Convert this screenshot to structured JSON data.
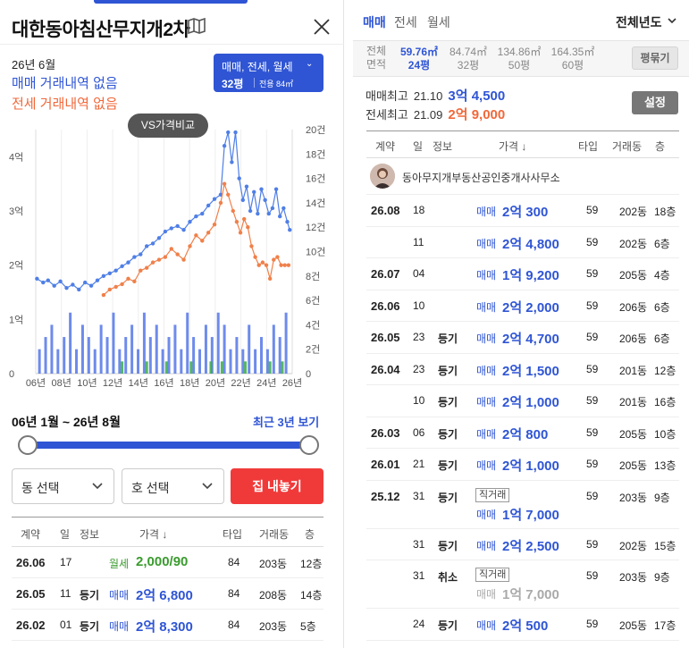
{
  "header": {
    "title": "대한동아침산무지개2차"
  },
  "summary": {
    "month": "26년 6월",
    "sale_none": "매매 거래내역 없음",
    "lease_none": "전세 거래내역 없음",
    "type_selector": {
      "types": "매매, 전세, 월세",
      "pyeong": "32평",
      "area": "전용 84㎡"
    },
    "vs_button": "VS가격비교"
  },
  "chart_data": {
    "type": "line",
    "title": "",
    "x_ticks": [
      "06년",
      "08년",
      "10년",
      "12년",
      "14년",
      "16년",
      "18년",
      "20년",
      "22년",
      "24년",
      "26년"
    ],
    "y_left_ticks": [
      "0",
      "1억",
      "2억",
      "3억",
      "4억"
    ],
    "y_right_ticks": [
      "0",
      "2건",
      "4건",
      "6건",
      "8건",
      "10건",
      "12건",
      "14건",
      "16건",
      "18건",
      "20건"
    ],
    "ylim_left": [
      0,
      4.5
    ],
    "ylim_right": [
      0,
      20
    ],
    "xlim": [
      2006,
      2026.8
    ],
    "grid": "vertical",
    "series": [
      {
        "color": "#4f7fe6",
        "points": [
          [
            2006.1,
            1.75
          ],
          [
            2006.6,
            1.68
          ],
          [
            2007.0,
            1.72
          ],
          [
            2007.5,
            1.62
          ],
          [
            2008.0,
            1.7
          ],
          [
            2008.5,
            1.58
          ],
          [
            2009.0,
            1.64
          ],
          [
            2009.5,
            1.55
          ],
          [
            2010.0,
            1.68
          ],
          [
            2010.5,
            1.62
          ],
          [
            2011.0,
            1.72
          ],
          [
            2011.5,
            1.8
          ],
          [
            2012.0,
            1.85
          ],
          [
            2012.5,
            1.9
          ],
          [
            2013.0,
            1.98
          ],
          [
            2013.5,
            2.05
          ],
          [
            2014.0,
            2.15
          ],
          [
            2014.5,
            2.2
          ],
          [
            2015.0,
            2.35
          ],
          [
            2015.5,
            2.4
          ],
          [
            2016.0,
            2.5
          ],
          [
            2016.5,
            2.62
          ],
          [
            2017.0,
            2.68
          ],
          [
            2017.5,
            2.72
          ],
          [
            2018.0,
            2.65
          ],
          [
            2018.5,
            2.8
          ],
          [
            2019.0,
            2.9
          ],
          [
            2019.5,
            2.95
          ],
          [
            2020.0,
            3.1
          ],
          [
            2020.5,
            3.22
          ],
          [
            2021.0,
            3.3
          ],
          [
            2021.3,
            4.2
          ],
          [
            2021.6,
            4.45
          ],
          [
            2021.9,
            3.9
          ],
          [
            2022.2,
            4.45
          ],
          [
            2022.5,
            3.6
          ],
          [
            2022.8,
            3.2
          ],
          [
            2023.1,
            3.45
          ],
          [
            2023.4,
            3.0
          ],
          [
            2023.7,
            3.35
          ],
          [
            2024.0,
            2.95
          ],
          [
            2024.3,
            3.4
          ],
          [
            2024.6,
            3.2
          ],
          [
            2024.9,
            2.95
          ],
          [
            2025.2,
            3.05
          ],
          [
            2025.5,
            3.4
          ],
          [
            2025.8,
            2.9
          ],
          [
            2026.1,
            3.05
          ],
          [
            2026.4,
            2.8
          ],
          [
            2026.6,
            2.65
          ]
        ]
      },
      {
        "color": "#f0804a",
        "points": [
          [
            2011.5,
            1.45
          ],
          [
            2012.0,
            1.55
          ],
          [
            2012.5,
            1.6
          ],
          [
            2013.0,
            1.65
          ],
          [
            2013.5,
            1.75
          ],
          [
            2014.0,
            1.7
          ],
          [
            2014.5,
            1.9
          ],
          [
            2015.0,
            1.95
          ],
          [
            2015.5,
            2.05
          ],
          [
            2016.0,
            2.1
          ],
          [
            2016.5,
            2.15
          ],
          [
            2017.0,
            2.3
          ],
          [
            2017.5,
            2.2
          ],
          [
            2018.0,
            2.1
          ],
          [
            2018.5,
            2.35
          ],
          [
            2019.0,
            2.55
          ],
          [
            2019.5,
            2.45
          ],
          [
            2020.0,
            2.6
          ],
          [
            2020.5,
            2.75
          ],
          [
            2021.0,
            3.15
          ],
          [
            2021.3,
            3.5
          ],
          [
            2021.6,
            3.3
          ],
          [
            2022.0,
            3.0
          ],
          [
            2022.3,
            2.8
          ],
          [
            2022.6,
            2.6
          ],
          [
            2022.9,
            2.85
          ],
          [
            2023.2,
            2.7
          ],
          [
            2023.5,
            2.35
          ],
          [
            2023.8,
            2.15
          ],
          [
            2024.1,
            2.0
          ],
          [
            2024.4,
            2.05
          ],
          [
            2024.7,
            2.0
          ],
          [
            2025.0,
            1.75
          ],
          [
            2025.3,
            2.1
          ],
          [
            2025.6,
            2.15
          ],
          [
            2025.9,
            2.0
          ],
          [
            2026.2,
            2.0
          ],
          [
            2026.5,
            2.0
          ]
        ]
      }
    ],
    "volume_bars": [
      {
        "color": "#5577e8",
        "points": [
          [
            2006.3,
            2
          ],
          [
            2006.8,
            3
          ],
          [
            2007.3,
            4
          ],
          [
            2007.8,
            2
          ],
          [
            2008.3,
            3
          ],
          [
            2008.8,
            5
          ],
          [
            2009.3,
            2
          ],
          [
            2009.8,
            4
          ],
          [
            2010.3,
            3
          ],
          [
            2010.8,
            2
          ],
          [
            2011.3,
            4
          ],
          [
            2011.8,
            3
          ],
          [
            2012.3,
            5
          ],
          [
            2012.8,
            2
          ],
          [
            2013.3,
            3
          ],
          [
            2013.8,
            4
          ],
          [
            2014.3,
            2
          ],
          [
            2014.8,
            5
          ],
          [
            2015.3,
            3
          ],
          [
            2015.8,
            4
          ],
          [
            2016.3,
            2
          ],
          [
            2016.8,
            3
          ],
          [
            2017.3,
            4
          ],
          [
            2017.8,
            2
          ],
          [
            2018.3,
            5
          ],
          [
            2018.8,
            3
          ],
          [
            2019.3,
            2
          ],
          [
            2019.8,
            4
          ],
          [
            2020.3,
            3
          ],
          [
            2020.8,
            5
          ],
          [
            2021.3,
            4
          ],
          [
            2021.8,
            2
          ],
          [
            2022.3,
            3
          ],
          [
            2022.8,
            2
          ],
          [
            2023.3,
            4
          ],
          [
            2023.8,
            2
          ],
          [
            2024.3,
            3
          ],
          [
            2024.8,
            2
          ],
          [
            2025.3,
            4
          ],
          [
            2025.8,
            3
          ],
          [
            2026.3,
            5
          ]
        ]
      },
      {
        "color": "#3aaa4a",
        "points": [
          [
            2013.0,
            1
          ],
          [
            2015.0,
            1
          ],
          [
            2016.6,
            1
          ],
          [
            2018.6,
            1
          ],
          [
            2020.2,
            1
          ],
          [
            2021.1,
            1
          ],
          [
            2023.0,
            1
          ],
          [
            2025.0,
            1
          ],
          [
            2026.0,
            1
          ]
        ]
      }
    ]
  },
  "period": {
    "range": "06년 1월 ~ 26년 8월",
    "recent_link": "최근 3년 보기"
  },
  "filters": {
    "dong_placeholder": "동 선택",
    "ho_placeholder": "호 선택",
    "sell_button": "집 내놓기"
  },
  "left_table": {
    "headers": [
      "계약",
      "일",
      "정보",
      "가격 ↓",
      "타입",
      "거래동",
      "층"
    ],
    "rows": [
      {
        "ym": "26.06",
        "day": "17",
        "info": "",
        "kind": "월세",
        "price": "2,000/90",
        "type": "84",
        "dong": "203동",
        "floor": "12층",
        "style": "wolse"
      },
      {
        "ym": "26.05",
        "day": "11",
        "info": "등기",
        "kind": "매매",
        "price": "2억 6,800",
        "type": "84",
        "dong": "208동",
        "floor": "14층",
        "style": "sale"
      },
      {
        "ym": "26.02",
        "day": "01",
        "info": "등기",
        "kind": "매매",
        "price": "2억 8,300",
        "type": "84",
        "dong": "203동",
        "floor": "5층",
        "style": "sale"
      }
    ]
  },
  "right": {
    "tabs": [
      "매매",
      "전세",
      "월세"
    ],
    "all_years": "전체년도",
    "area_label_1": "전체",
    "area_label_2": "면적",
    "areas": [
      {
        "m2": "59.76㎡",
        "py": "24평",
        "selected": true
      },
      {
        "m2": "84.74㎡",
        "py": "32평",
        "selected": false
      },
      {
        "m2": "134.86㎡",
        "py": "50평",
        "selected": false
      },
      {
        "m2": "164.35㎡",
        "py": "60평",
        "selected": false
      }
    ],
    "pyeong_button": "평묶기",
    "max_sale_label": "매매최고",
    "max_sale_date": "21.10",
    "max_sale_price": "3억 4,500",
    "max_lease_label": "전세최고",
    "max_lease_date": "21.09",
    "max_lease_price": "2억 9,000",
    "settings_button": "설정",
    "headers": [
      "계약",
      "일",
      "정보",
      "가격 ↓",
      "타입",
      "거래동",
      "층"
    ],
    "agent_name": "동아무지개부동산공인중개사사무소",
    "rows": [
      {
        "ym": "26.08",
        "day": "18",
        "info": "",
        "badge": "",
        "kind": "매매",
        "price": "2억 300",
        "type": "59",
        "dong": "202동",
        "floor": "18층",
        "style": "sale"
      },
      {
        "ym": "",
        "day": "11",
        "info": "",
        "badge": "",
        "kind": "매매",
        "price": "2억 4,800",
        "type": "59",
        "dong": "202동",
        "floor": "6층",
        "style": "sale"
      },
      {
        "ym": "26.07",
        "day": "04",
        "info": "",
        "badge": "",
        "kind": "매매",
        "price": "1억 9,200",
        "type": "59",
        "dong": "205동",
        "floor": "4층",
        "style": "sale"
      },
      {
        "ym": "26.06",
        "day": "10",
        "info": "",
        "badge": "",
        "kind": "매매",
        "price": "2억 2,000",
        "type": "59",
        "dong": "206동",
        "floor": "6층",
        "style": "sale"
      },
      {
        "ym": "26.05",
        "day": "23",
        "info": "등기",
        "badge": "",
        "kind": "매매",
        "price": "2억 4,700",
        "type": "59",
        "dong": "206동",
        "floor": "6층",
        "style": "sale"
      },
      {
        "ym": "26.04",
        "day": "23",
        "info": "등기",
        "badge": "",
        "kind": "매매",
        "price": "2억 1,500",
        "type": "59",
        "dong": "201동",
        "floor": "12층",
        "style": "sale"
      },
      {
        "ym": "",
        "day": "10",
        "info": "등기",
        "badge": "",
        "kind": "매매",
        "price": "2억 1,000",
        "type": "59",
        "dong": "201동",
        "floor": "16층",
        "style": "sale"
      },
      {
        "ym": "26.03",
        "day": "06",
        "info": "등기",
        "badge": "",
        "kind": "매매",
        "price": "2억 800",
        "type": "59",
        "dong": "205동",
        "floor": "10층",
        "style": "sale"
      },
      {
        "ym": "26.01",
        "day": "21",
        "info": "등기",
        "badge": "",
        "kind": "매매",
        "price": "2억 1,000",
        "type": "59",
        "dong": "205동",
        "floor": "13층",
        "style": "sale"
      },
      {
        "ym": "25.12",
        "day": "31",
        "info": "등기",
        "badge": "직거래",
        "kind": "매매",
        "price": "1억 7,000",
        "type": "59",
        "dong": "203동",
        "floor": "9층",
        "style": "sale"
      },
      {
        "ym": "",
        "day": "31",
        "info": "등기",
        "badge": "",
        "kind": "매매",
        "price": "2억 2,500",
        "type": "59",
        "dong": "202동",
        "floor": "15층",
        "style": "sale"
      },
      {
        "ym": "",
        "day": "31",
        "info": "취소",
        "badge": "직거래",
        "kind": "매매",
        "price": "1억 7,000",
        "type": "59",
        "dong": "203동",
        "floor": "9층",
        "style": "cancel"
      },
      {
        "ym": "",
        "day": "24",
        "info": "등기",
        "badge": "",
        "kind": "매매",
        "price": "2억 500",
        "type": "59",
        "dong": "205동",
        "floor": "17층",
        "style": "sale"
      }
    ]
  },
  "colors": {
    "accent": "#2f55d4",
    "lease": "#f0683a",
    "sell_button": "#f03a3a",
    "wolse": "#3a9b2e"
  }
}
